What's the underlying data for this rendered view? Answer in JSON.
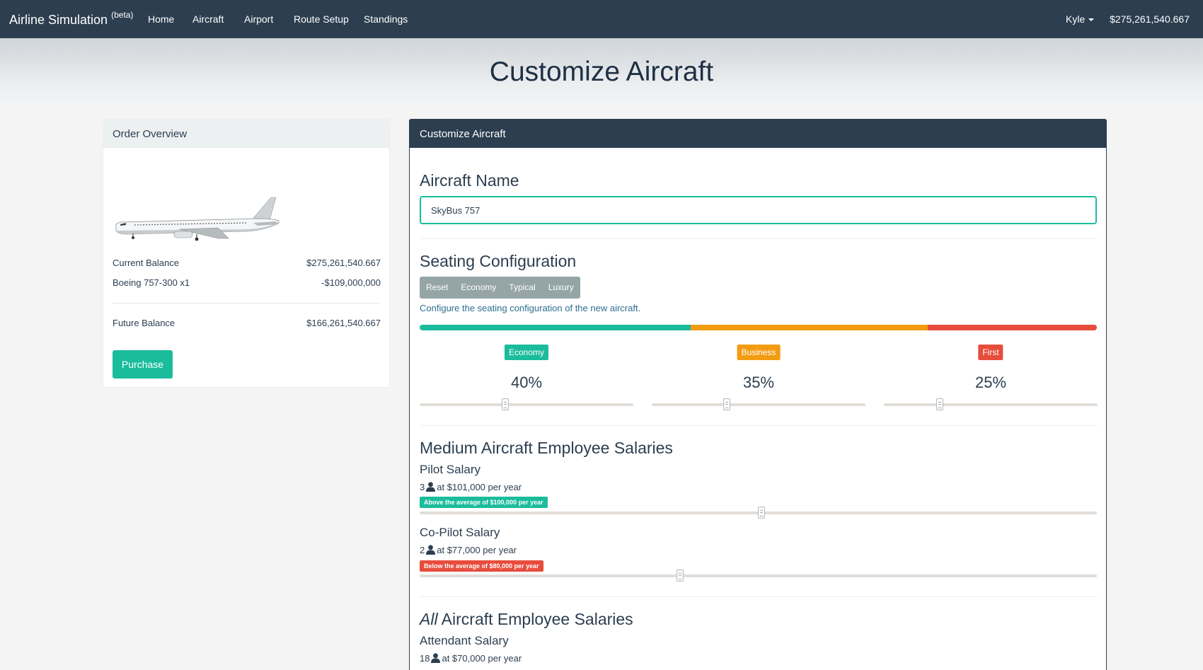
{
  "navbar": {
    "brand": "Airline Simulation",
    "brand_sup": "(beta)",
    "links": [
      "Home",
      "Aircraft",
      "Airport",
      "Route Setup",
      "Standings"
    ],
    "user": "Kyle",
    "balance": "$275,261,540.667"
  },
  "hero": {
    "title": "Customize Aircraft"
  },
  "order_overview": {
    "title": "Order Overview",
    "current_balance_label": "Current Balance",
    "current_balance_value": "$275,261,540.667",
    "item_label": "Boeing 757-300 x1",
    "item_value": "-$109,000,000",
    "future_balance_label": "Future Balance",
    "future_balance_value": "$166,261,540.667",
    "purchase_label": "Purchase"
  },
  "customize": {
    "title": "Customize Aircraft",
    "name_heading": "Aircraft Name",
    "name_value": "SkyBus 757",
    "seating_heading": "Seating Configuration",
    "presets": [
      "Reset",
      "Economy",
      "Typical",
      "Luxury"
    ],
    "seating_help": "Configure the seating configuration of the new aircraft.",
    "classes": [
      {
        "name": "Economy",
        "percent": "40%",
        "color": "#1abc9c",
        "bar_fraction": 0.4,
        "slider_fraction": 0.4
      },
      {
        "name": "Business",
        "percent": "35%",
        "color": "#f39c12",
        "bar_fraction": 0.35,
        "slider_fraction": 0.35
      },
      {
        "name": "First",
        "percent": "25%",
        "color": "#e74c3c",
        "bar_fraction": 0.25,
        "slider_fraction": 0.26
      }
    ],
    "medium_heading": "Medium Aircraft Employee Salaries",
    "pilot": {
      "title": "Pilot Salary",
      "count": "3",
      "rate": "at $101,000 per year",
      "badge": "Above the average of $100,000 per year",
      "badge_color": "#1abc9c",
      "slider_fraction": 0.505
    },
    "copilot": {
      "title": "Co-Pilot Salary",
      "count": "2",
      "rate": "at $77,000 per year",
      "badge": "Below the average of $80,000 per year",
      "badge_color": "#e74c3c",
      "slider_fraction": 0.385
    },
    "all_heading_em": "All",
    "all_heading_rest": " Aircraft Employee Salaries",
    "attendant": {
      "title": "Attendant Salary",
      "count": "18",
      "rate": "at $70,000 per year"
    }
  }
}
